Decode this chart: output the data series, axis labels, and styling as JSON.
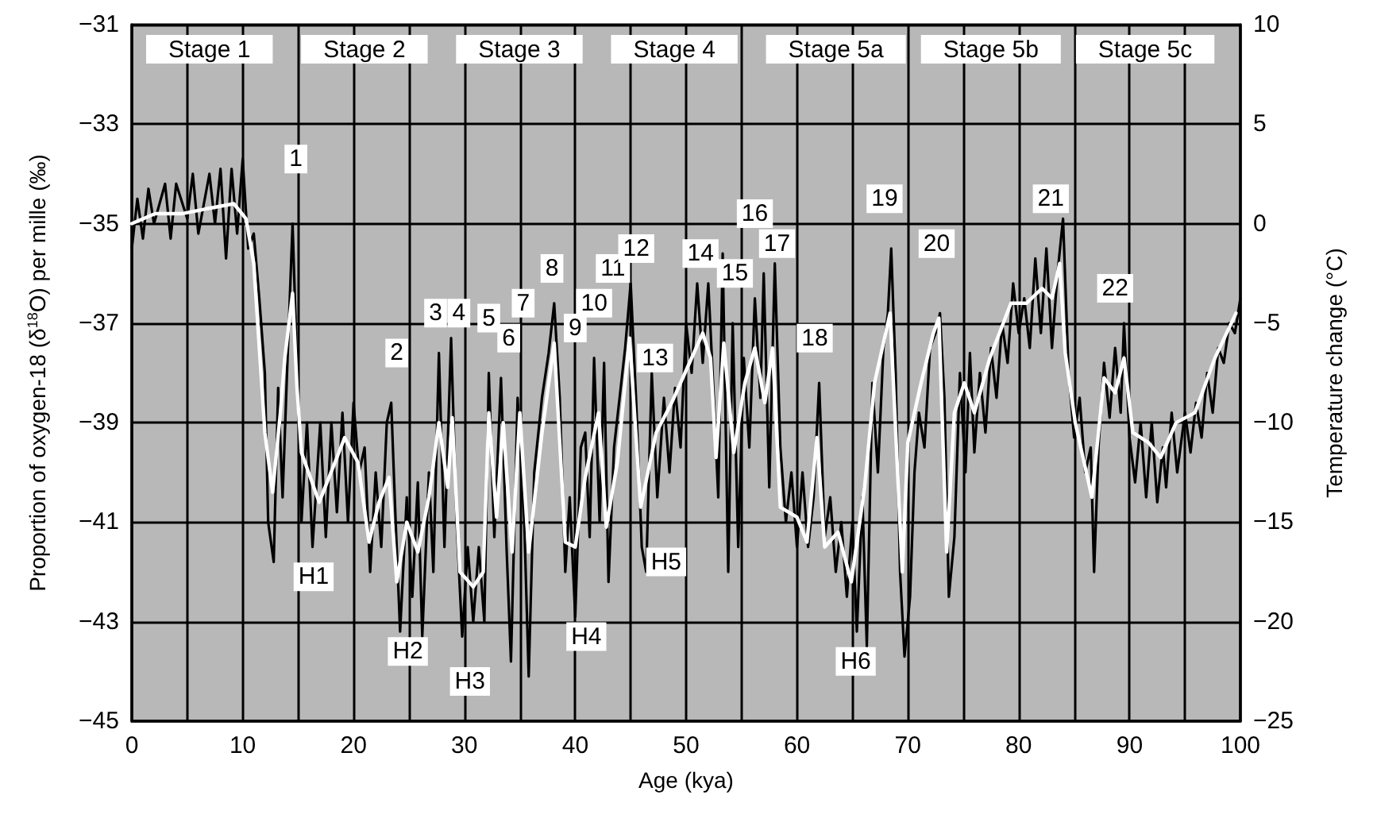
{
  "chart_data": {
    "type": "line",
    "xlabel": "Age (kya)",
    "ylabel": "Proportion of oxygen-18 (δ$^{18}$O) per mille (‰)",
    "y2label": "Temperature change (°C)",
    "xlim": [
      0,
      100
    ],
    "xticks": [
      0,
      {
        "value": 5,
        "label": null
      },
      10,
      {
        "value": 15,
        "label": null
      },
      20,
      {
        "value": 25,
        "label": null
      },
      30,
      {
        "value": 35,
        "label": null
      },
      40,
      {
        "value": 45,
        "label": null
      },
      50,
      {
        "value": 55,
        "label": null
      },
      60,
      {
        "value": 65,
        "label": null
      },
      70,
      {
        "value": 75,
        "label": null
      },
      80,
      {
        "value": 85,
        "label": null
      },
      90,
      {
        "value": 95,
        "label": null
      },
      100
    ],
    "ylim": [
      -45,
      -31
    ],
    "yticks": [
      -45,
      -43,
      -41,
      -39,
      -37,
      -35,
      -33,
      -31
    ],
    "y2lim": [
      -25,
      10
    ],
    "y2ticks": [
      -25,
      -20,
      -15,
      -10,
      -5,
      0,
      5,
      10
    ],
    "grid": true,
    "marker": "none",
    "line_style": "solid",
    "series": [
      {
        "color": "#000000",
        "x": [
          0,
          0.5,
          1,
          1.5,
          2,
          3,
          3.5,
          4,
          5,
          5.5,
          6,
          7,
          7.5,
          8,
          8.5,
          9,
          9.5,
          10,
          10.5,
          11,
          11.5,
          12,
          12.3,
          12.8,
          13.2,
          13.6,
          14,
          14.5,
          15,
          15.3,
          15.8,
          16.3,
          17,
          17.5,
          18,
          18.5,
          19,
          19.5,
          20,
          20.5,
          21,
          21.5,
          22,
          22.5,
          23,
          23.4,
          23.8,
          24.2,
          24.8,
          25.3,
          25.8,
          26.2,
          26.8,
          27.2,
          27.7,
          28.2,
          28.8,
          29.3,
          29.8,
          30.3,
          30.8,
          31.3,
          31.8,
          32.2,
          32.7,
          33.3,
          33.8,
          34.2,
          34.8,
          35.4,
          35.8,
          36.3,
          37,
          37.6,
          38.1,
          38.6,
          39.1,
          39.5,
          40,
          40.5,
          40.9,
          41.3,
          41.7,
          42.2,
          42.6,
          43,
          43.5,
          44,
          44.5,
          45,
          45.5,
          46,
          46.4,
          46.9,
          47.4,
          48,
          48.5,
          49,
          49.5,
          50,
          50.5,
          51,
          51.5,
          52,
          52.5,
          52.9,
          53.3,
          53.8,
          54.2,
          54.7,
          55.2,
          55.7,
          56.2,
          56.7,
          57,
          57.5,
          58,
          58.5,
          59,
          59.5,
          60,
          60.5,
          61,
          61.5,
          62,
          62.5,
          63,
          63.5,
          64,
          64.5,
          65,
          65.4,
          65.9,
          66.3,
          66.8,
          67.3,
          67.8,
          68.2,
          68.5,
          68.9,
          69.3,
          69.7,
          70.2,
          70.6,
          71,
          71.5,
          72,
          72.5,
          72.9,
          73.3,
          73.7,
          74.2,
          74.7,
          75.2,
          75.6,
          76,
          76.5,
          77,
          77.5,
          78,
          78.5,
          79,
          79.5,
          80,
          80.5,
          81,
          81.5,
          82,
          82.5,
          83,
          83.5,
          84,
          84.5,
          85,
          85.5,
          86,
          86.5,
          86.8,
          87.2,
          87.7,
          88.2,
          88.7,
          89.2,
          89.5,
          90,
          90.5,
          91,
          91.5,
          92,
          92.5,
          93,
          93.3,
          93.8,
          94.3,
          95,
          95.5,
          96,
          96.5,
          97,
          97.5,
          98,
          98.5,
          99,
          99.5,
          100
        ],
        "values": [
          -35.5,
          -34.5,
          -35.3,
          -34.3,
          -35.0,
          -34.2,
          -35.3,
          -34.2,
          -34.9,
          -34.0,
          -35.2,
          -34.0,
          -35.0,
          -33.9,
          -35.7,
          -33.9,
          -35.2,
          -33.7,
          -35.5,
          -35.2,
          -36.5,
          -38.0,
          -41.0,
          -41.8,
          -38.3,
          -40.5,
          -38.0,
          -35.0,
          -38.6,
          -41.0,
          -39.0,
          -41.5,
          -39.0,
          -41.3,
          -39.0,
          -40.8,
          -38.8,
          -41.0,
          -38.6,
          -40.0,
          -39.5,
          -42.0,
          -40.0,
          -41.5,
          -39.0,
          -38.6,
          -41.0,
          -43.2,
          -40.5,
          -42.5,
          -40.2,
          -43.3,
          -40.0,
          -42.0,
          -37.6,
          -41.5,
          -37.3,
          -41.0,
          -43.3,
          -41.5,
          -43.0,
          -41.5,
          -43.0,
          -38.0,
          -41.3,
          -38.1,
          -41.5,
          -43.8,
          -38.5,
          -41.0,
          -44.1,
          -40.0,
          -38.5,
          -37.6,
          -36.6,
          -38.5,
          -42.0,
          -40.5,
          -42.9,
          -39.5,
          -39.2,
          -41.3,
          -37.7,
          -41.0,
          -37.8,
          -42.2,
          -39.5,
          -38.5,
          -37.5,
          -36.2,
          -38.6,
          -41.5,
          -42.0,
          -38.0,
          -40.5,
          -38.5,
          -40.0,
          -38.3,
          -39.5,
          -37.0,
          -38.0,
          -36.2,
          -37.8,
          -36.2,
          -38.5,
          -40.5,
          -35.6,
          -42.0,
          -37.0,
          -41.5,
          -37.7,
          -39.5,
          -36.5,
          -38.5,
          -36.0,
          -40.3,
          -35.8,
          -39.5,
          -41.0,
          -40.0,
          -41.5,
          -40.0,
          -41.5,
          -40.5,
          -38.2,
          -41.3,
          -40.5,
          -42.0,
          -41.0,
          -42.5,
          -41.0,
          -43.2,
          -40.5,
          -43.5,
          -38.2,
          -40.0,
          -37.5,
          -36.8,
          -35.5,
          -38.0,
          -42.0,
          -43.7,
          -42.5,
          -40.0,
          -38.8,
          -39.5,
          -37.5,
          -37.2,
          -36.8,
          -38.5,
          -42.5,
          -41.3,
          -38.0,
          -40.0,
          -37.6,
          -39.6,
          -38.0,
          -39.2,
          -37.5,
          -38.5,
          -37.0,
          -37.8,
          -36.2,
          -37.2,
          -36.5,
          -37.5,
          -35.7,
          -37.2,
          -35.5,
          -37.5,
          -36.0,
          -34.9,
          -38.0,
          -39.3,
          -38.5,
          -40.0,
          -39.5,
          -42.0,
          -39.5,
          -37.8,
          -38.9,
          -37.5,
          -38.8,
          -37.0,
          -39.3,
          -40.2,
          -39.0,
          -40.5,
          -39.0,
          -40.6,
          -39.5,
          -40.3,
          -38.8,
          -40.0,
          -38.8,
          -39.6,
          -38.6,
          -39.3,
          -38.0,
          -38.8,
          -37.5,
          -37.8,
          -37.0,
          -37.2,
          -36.5
        ]
      },
      {
        "color": "#ffffff",
        "x": [
          0,
          2.1,
          4.5,
          6.8,
          9.2,
          10.3,
          11,
          11.5,
          12,
          12.7,
          13.4,
          13.8,
          14.5,
          14.9,
          15.3,
          16.9,
          18.5,
          19.2,
          20.4,
          21.4,
          22.3,
          23.2,
          23.9,
          24.8,
          25.8,
          26.8,
          27.7,
          28.5,
          28.9,
          29.6,
          30.8,
          31.7,
          32.2,
          32.9,
          33.5,
          34.3,
          35,
          35.8,
          37,
          38.1,
          39.1,
          40,
          40.9,
          42.1,
          42.8,
          43.8,
          44.9,
          45.9,
          47.3,
          48.7,
          50.1,
          51.5,
          52.2,
          52.7,
          53.4,
          54.3,
          55.3,
          56.2,
          57.1,
          57.8,
          58.5,
          60,
          60.9,
          61.8,
          62.5,
          63.7,
          64.9,
          66.1,
          67,
          68.4,
          69.5,
          70,
          71.2,
          72.3,
          72.8,
          73.5,
          74.2,
          75.1,
          76,
          77.4,
          79.3,
          80.7,
          82.1,
          83,
          83.7,
          84.2,
          85.1,
          86.6,
          87.7,
          88.7,
          89.5,
          90.3,
          91.7,
          92.8,
          94.2,
          95.9,
          97.7,
          99.6
        ],
        "values": [
          -35.0,
          -34.8,
          -34.8,
          -34.7,
          -34.6,
          -34.9,
          -35.8,
          -37.5,
          -39.2,
          -40.4,
          -38.8,
          -37.7,
          -36.4,
          -38.3,
          -39.6,
          -40.6,
          -39.7,
          -39.3,
          -39.8,
          -41.4,
          -40.6,
          -40.1,
          -42.2,
          -41.0,
          -41.6,
          -40.5,
          -39.0,
          -40.3,
          -38.9,
          -42.0,
          -42.3,
          -42.0,
          -38.8,
          -40.9,
          -39.0,
          -41.6,
          -38.8,
          -41.6,
          -39.2,
          -37.4,
          -41.4,
          -41.5,
          -40.1,
          -38.8,
          -41.1,
          -39.8,
          -37.3,
          -40.7,
          -39.2,
          -38.6,
          -37.9,
          -37.2,
          -37.7,
          -39.7,
          -37.4,
          -39.6,
          -38.2,
          -37.5,
          -38.6,
          -37.5,
          -40.7,
          -40.9,
          -41.4,
          -39.3,
          -41.5,
          -41.2,
          -42.2,
          -40.3,
          -38.2,
          -36.8,
          -42.0,
          -39.4,
          -38.2,
          -37.2,
          -36.9,
          -41.6,
          -38.8,
          -38.2,
          -38.8,
          -37.7,
          -36.6,
          -36.6,
          -36.3,
          -36.5,
          -35.8,
          -37.6,
          -39.0,
          -40.5,
          -38.1,
          -38.4,
          -37.7,
          -39.2,
          -39.4,
          -39.7,
          -39.0,
          -38.8,
          -37.7,
          -36.8
        ]
      }
    ],
    "annotations": [
      "Stage 1",
      "Stage 2",
      "Stage 3",
      "Stage 4",
      "Stage 5a",
      "Stage 5b",
      "Stage 5c",
      {
        "text": "1",
        "x": 14.8,
        "y": -33.7
      },
      {
        "text": "2",
        "x": 23.9,
        "y": -37.6
      },
      {
        "text": "3",
        "x": 27.4,
        "y": -36.8
      },
      {
        "text": "4",
        "x": 29.5,
        "y": -36.8
      },
      {
        "text": "5",
        "x": 32.2,
        "y": -36.9
      },
      {
        "text": "6",
        "x": 34.0,
        "y": -37.3
      },
      {
        "text": "7",
        "x": 35.3,
        "y": -36.6
      },
      {
        "text": "8",
        "x": 37.9,
        "y": -35.9
      },
      {
        "text": "9",
        "x": 40.0,
        "y": -37.1
      },
      {
        "text": "10",
        "x": 41.7,
        "y": -36.6
      },
      {
        "text": "11",
        "x": 43.4,
        "y": -35.9
      },
      {
        "text": "12",
        "x": 45.5,
        "y": -35.5
      },
      {
        "text": "13",
        "x": 47.2,
        "y": -37.7
      },
      {
        "text": "14",
        "x": 51.3,
        "y": -35.6
      },
      {
        "text": "15",
        "x": 54.4,
        "y": -36.0
      },
      {
        "text": "16",
        "x": 56.2,
        "y": -34.8
      },
      {
        "text": "17",
        "x": 58.2,
        "y": -35.4
      },
      {
        "text": "18",
        "x": 61.6,
        "y": -37.3
      },
      {
        "text": "19",
        "x": 67.9,
        "y": -34.5
      },
      {
        "text": "20",
        "x": 72.6,
        "y": -35.4
      },
      {
        "text": "21",
        "x": 82.9,
        "y": -34.5
      },
      {
        "text": "22",
        "x": 88.7,
        "y": -36.3
      },
      {
        "text": "H1",
        "x": 16.4,
        "y": -42.1
      },
      {
        "text": "H2",
        "x": 24.9,
        "y": -43.6
      },
      {
        "text": "H3",
        "x": 30.5,
        "y": -44.2
      },
      {
        "text": "H4",
        "x": 41.0,
        "y": -43.3
      },
      {
        "text": "H5",
        "x": 48.2,
        "y": -41.8
      },
      {
        "text": "H6",
        "x": 65.3,
        "y": -43.8
      }
    ]
  }
}
